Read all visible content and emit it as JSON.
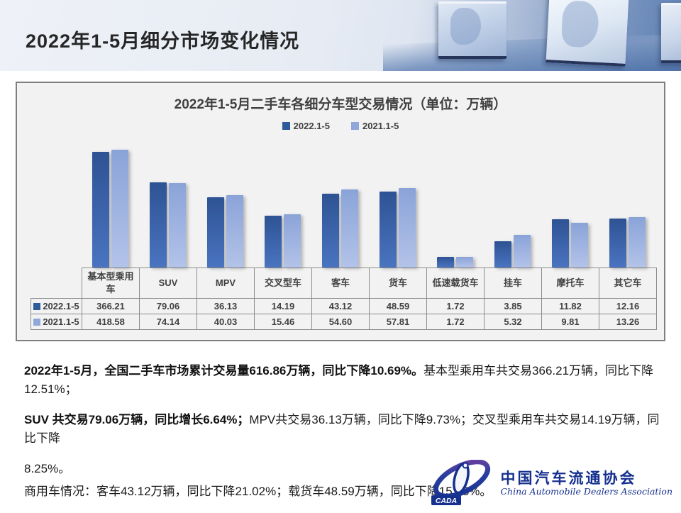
{
  "page": {
    "title": "2022年1-5月细分市场变化情况"
  },
  "chart_data": {
    "type": "bar",
    "title": "2022年1-5月二手车各细分车型交易情况（单位：万辆）",
    "unit": "万辆",
    "scale": "log10",
    "legend_position": "top",
    "grid": false,
    "categories": [
      "基本型乘用车",
      "SUV",
      "MPV",
      "交叉型车",
      "客车",
      "货车",
      "低速载货车",
      "挂车",
      "摩托车",
      "其它车"
    ],
    "series": [
      {
        "name": "2022.1-5",
        "legend_color": "#2e5b9c",
        "color_top": "#2e5394",
        "color_bottom": "#4a74c0",
        "values": [
          366.21,
          79.06,
          36.13,
          14.19,
          43.12,
          48.59,
          1.72,
          3.85,
          11.82,
          12.16
        ]
      },
      {
        "name": "2021.1-5",
        "legend_color": "#8fa8db",
        "color_top": "#8aa3d8",
        "color_bottom": "#b3c3e9",
        "values": [
          418.58,
          74.14,
          40.03,
          15.46,
          54.6,
          57.81,
          1.72,
          5.32,
          9.81,
          13.26
        ]
      }
    ]
  },
  "body": {
    "p1_bold": "2022年1-5月，全国二手车市场累计交易量616.86万辆，同比下降10.69%。",
    "p1_rest": "基本型乘用车共交易366.21万辆，同比下降12.51%；",
    "p2_bold": "SUV 共交易79.06万辆，同比增长6.64%；",
    "p2_rest": "MPV共交易36.13万辆，同比下降9.73%；交叉型乘用车共交易14.19万辆，同比下降",
    "p3": "8.25%。",
    "p4": "商用车情况：客车43.12万辆，同比下降21.02%；载货车48.59万辆，同比下降15.95%。"
  },
  "logo": {
    "cn": "中国汽车流通协会",
    "en": "China Automobile Dealers Association",
    "acronym": "CADA",
    "color": "#16308f"
  }
}
